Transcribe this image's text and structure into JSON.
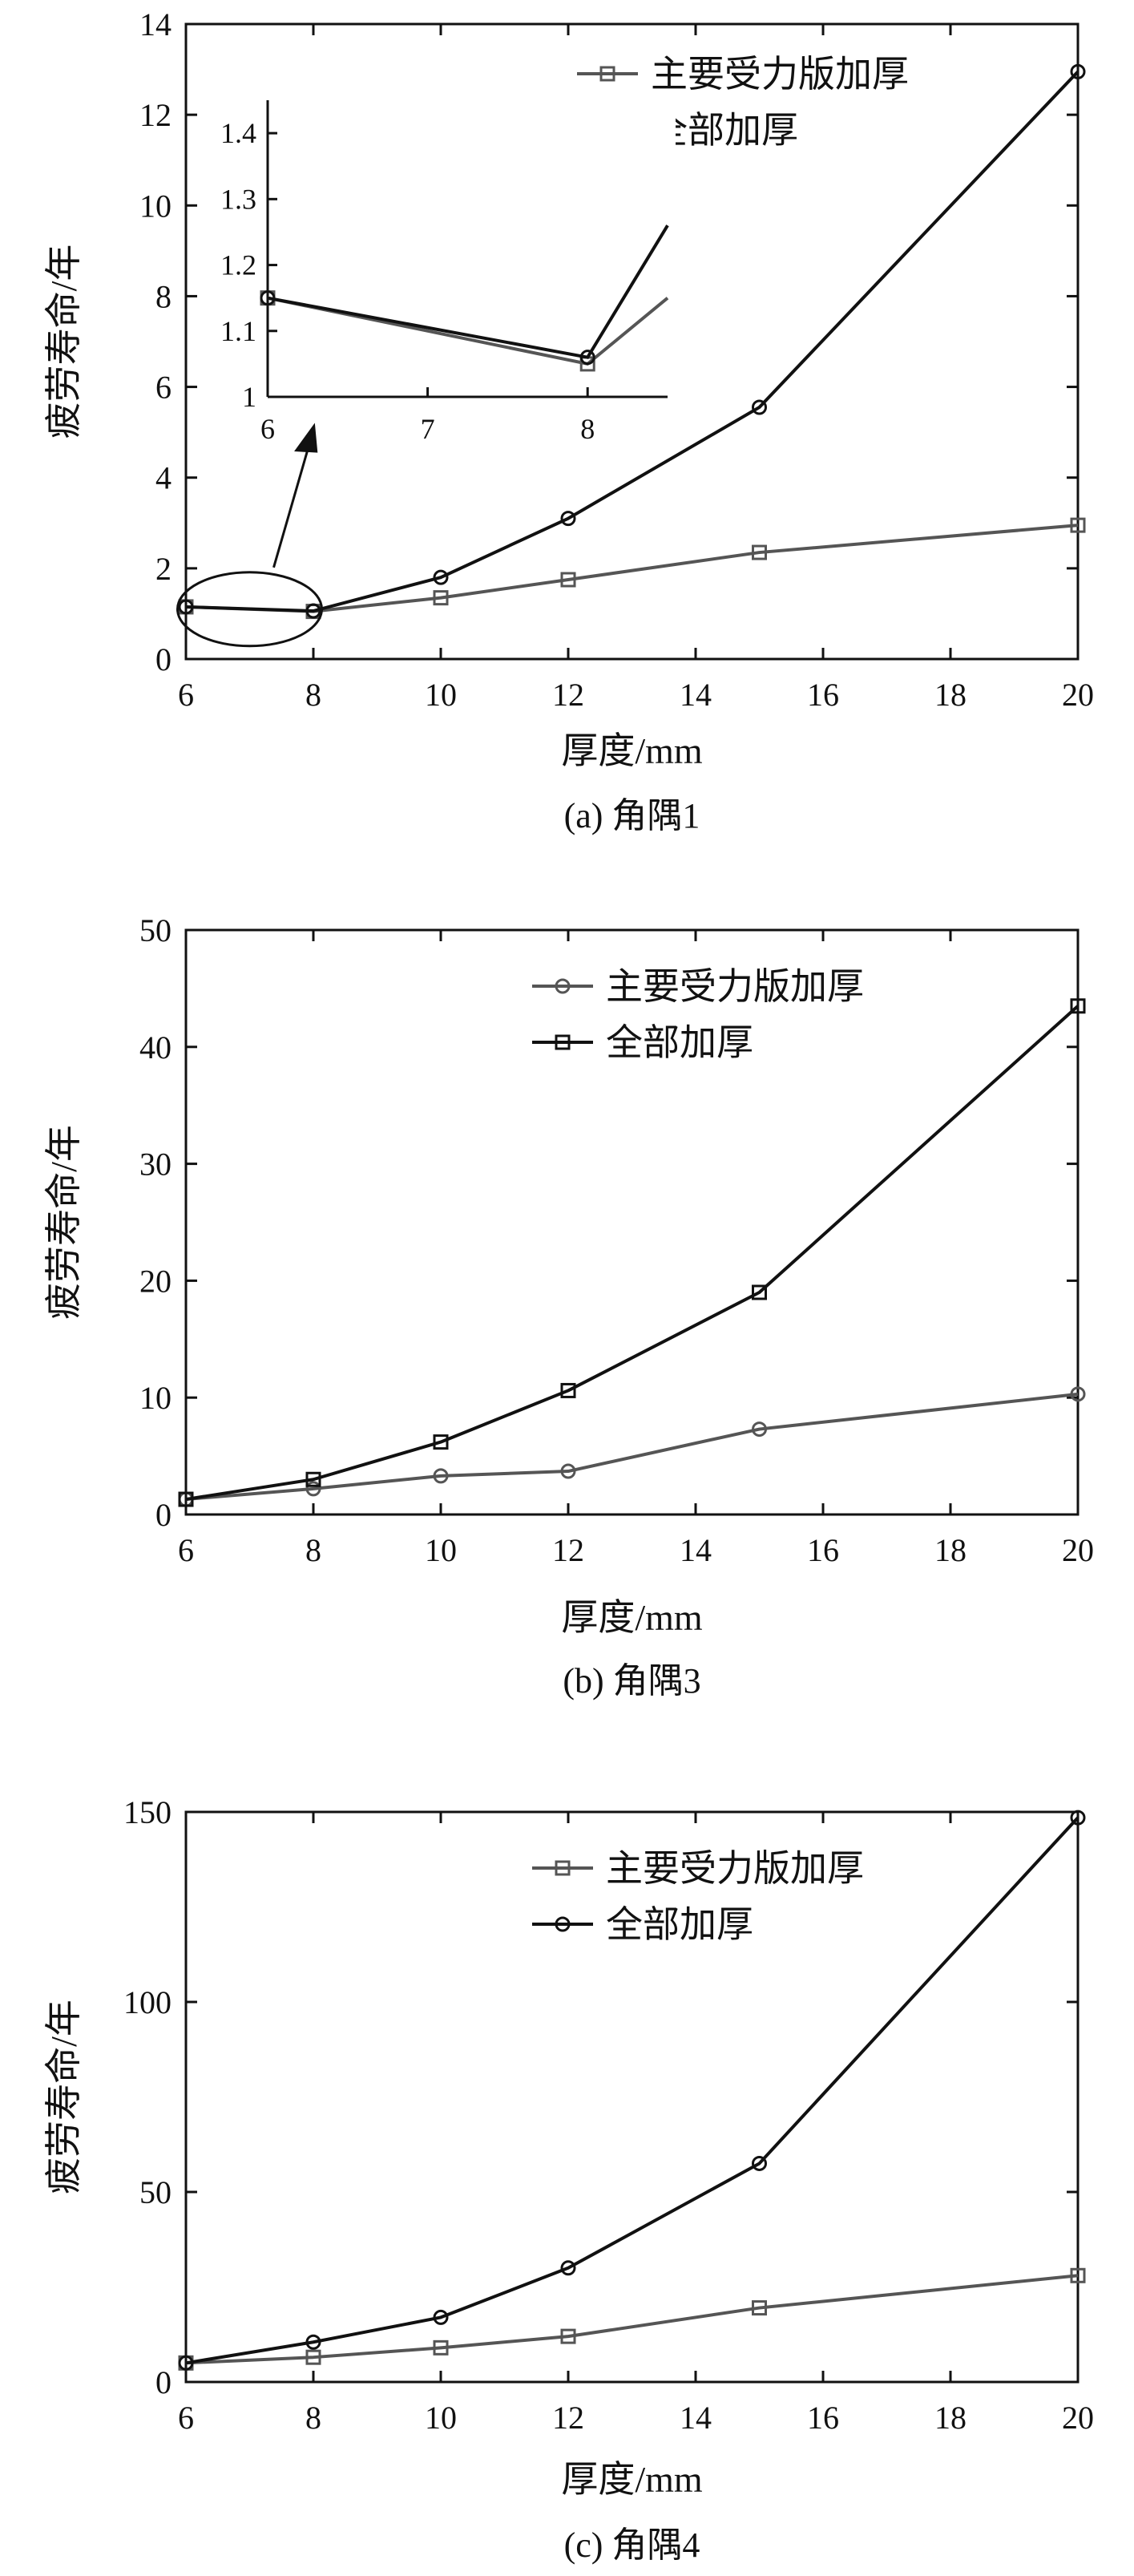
{
  "chart_data": [
    {
      "id": "a",
      "type": "line",
      "caption": "(a) 角隅1",
      "xlabel": "厚度/mm",
      "ylabel": "疲劳寿命/年",
      "xlim": [
        6,
        20
      ],
      "ylim": [
        0,
        14
      ],
      "xticks": [
        6,
        8,
        10,
        12,
        14,
        16,
        18,
        20
      ],
      "yticks": [
        0,
        2,
        4,
        6,
        8,
        10,
        12,
        14
      ],
      "legend_position": "top-right",
      "series": [
        {
          "name": "主要受力版加厚",
          "marker": "square",
          "color": "#555555",
          "x": [
            6,
            8,
            10,
            12,
            15,
            20
          ],
          "y": [
            1.15,
            1.05,
            1.35,
            1.75,
            2.35,
            2.95
          ]
        },
        {
          "name": "全部加厚",
          "marker": "circle",
          "color": "#111111",
          "x": [
            6,
            8,
            10,
            12,
            15,
            20
          ],
          "y": [
            1.15,
            1.06,
            1.8,
            3.1,
            5.55,
            12.95
          ]
        }
      ],
      "inset": {
        "xlim": [
          6,
          8.5
        ],
        "ylim": [
          1.0,
          1.45
        ],
        "xticks": [
          6,
          7,
          8
        ],
        "yticks": [
          1,
          1.1,
          1.2,
          1.3,
          1.4
        ],
        "ytick_labels": [
          "1",
          "1.1",
          "1.2",
          "1.3",
          "1.4"
        ],
        "series": [
          {
            "name": "主要受力版加厚",
            "marker": "square",
            "color": "#555555",
            "x": [
              6,
              8,
              8.5
            ],
            "y": [
              1.15,
              1.05,
              1.15
            ]
          },
          {
            "name": "全部加厚",
            "marker": "circle",
            "color": "#111111",
            "x": [
              6,
              8,
              8.5
            ],
            "y": [
              1.15,
              1.06,
              1.26
            ]
          }
        ]
      }
    },
    {
      "id": "b",
      "type": "line",
      "caption": "(b) 角隅3",
      "xlabel": "厚度/mm",
      "ylabel": "疲劳寿命/年",
      "xlim": [
        6,
        20
      ],
      "ylim": [
        0,
        50
      ],
      "xticks": [
        6,
        8,
        10,
        12,
        14,
        16,
        18,
        20
      ],
      "yticks": [
        0,
        10,
        20,
        30,
        40,
        50
      ],
      "legend_position": "top-right",
      "series": [
        {
          "name": "主要受力版加厚",
          "marker": "circle",
          "color": "#555555",
          "x": [
            6,
            8,
            10,
            12,
            15,
            20
          ],
          "y": [
            1.3,
            2.2,
            3.3,
            3.7,
            7.3,
            10.3
          ]
        },
        {
          "name": "全部加厚",
          "marker": "square",
          "color": "#111111",
          "x": [
            6,
            8,
            10,
            12,
            15,
            20
          ],
          "y": [
            1.3,
            3.0,
            6.2,
            10.6,
            19.0,
            43.5
          ]
        }
      ]
    },
    {
      "id": "c",
      "type": "line",
      "caption": "(c) 角隅4",
      "xlabel": "厚度/mm",
      "ylabel": "疲劳寿命/年",
      "xlim": [
        6,
        20
      ],
      "ylim": [
        0,
        150
      ],
      "xticks": [
        6,
        8,
        10,
        12,
        14,
        16,
        18,
        20
      ],
      "yticks": [
        0,
        50,
        100,
        150
      ],
      "legend_position": "top-right",
      "series": [
        {
          "name": "主要受力版加厚",
          "marker": "square",
          "color": "#555555",
          "x": [
            6,
            8,
            10,
            12,
            15,
            20
          ],
          "y": [
            5,
            6.5,
            9,
            12,
            19.5,
            28
          ]
        },
        {
          "name": "全部加厚",
          "marker": "circle",
          "color": "#111111",
          "x": [
            6,
            8,
            10,
            12,
            15,
            20
          ],
          "y": [
            5,
            10.5,
            17,
            30,
            57.5,
            148.5
          ]
        }
      ]
    }
  ]
}
